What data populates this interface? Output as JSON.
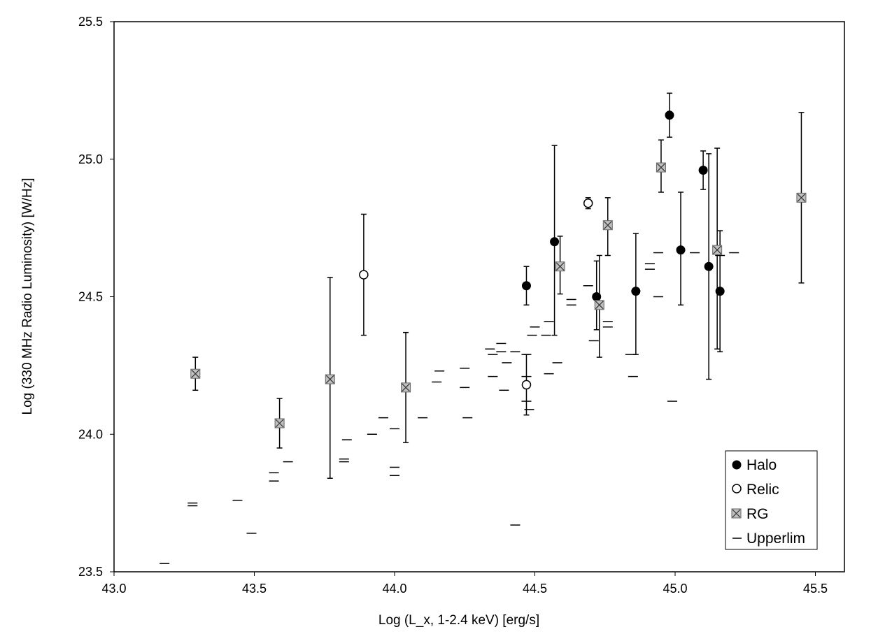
{
  "chart_data": {
    "type": "scatter",
    "xlabel": "Log (L_x, 1-2.4 keV) [erg/s]",
    "ylabel": "Log (330 MHz Radio Luminosity) [W/Hz]",
    "xlim": [
      43.0,
      45.6
    ],
    "ylim": [
      23.5,
      25.5
    ],
    "xticks": [
      43.0,
      43.5,
      44.0,
      44.5,
      45.0,
      45.5
    ],
    "yticks": [
      23.5,
      24.0,
      24.5,
      25.0,
      25.5
    ],
    "xtick_labels": [
      "43.0",
      "43.5",
      "44.0",
      "44.5",
      "45.0",
      "45.5"
    ],
    "ytick_labels": [
      "23.5",
      "24.0",
      "24.5",
      "25.0",
      "25.5"
    ],
    "grid": false,
    "legend_position": "bottom-right",
    "legend": [
      "Halo",
      "Relic",
      "RG",
      "Upperlim"
    ],
    "colors": {
      "halo": "#000000",
      "relic": "#ffffff",
      "rg": "#c0c0c0",
      "frame": "#000000"
    },
    "series": [
      {
        "name": "Halo",
        "marker": "filled-circle",
        "points": [
          {
            "x": 44.47,
            "y": 24.54,
            "ylo": 24.47,
            "yhi": 24.61
          },
          {
            "x": 44.57,
            "y": 24.7,
            "ylo": 24.36,
            "yhi": 25.05
          },
          {
            "x": 44.72,
            "y": 24.5,
            "ylo": 24.38,
            "yhi": 24.63
          },
          {
            "x": 44.86,
            "y": 24.52,
            "ylo": 24.29,
            "yhi": 24.73
          },
          {
            "x": 44.98,
            "y": 25.16,
            "ylo": 25.08,
            "yhi": 25.24
          },
          {
            "x": 45.02,
            "y": 24.67,
            "ylo": 24.47,
            "yhi": 24.88
          },
          {
            "x": 45.1,
            "y": 24.96,
            "ylo": 24.89,
            "yhi": 25.03
          },
          {
            "x": 45.12,
            "y": 24.61,
            "ylo": 24.2,
            "yhi": 25.02
          },
          {
            "x": 45.16,
            "y": 24.52,
            "ylo": 24.3,
            "yhi": 24.74
          }
        ]
      },
      {
        "name": "Relic",
        "marker": "open-circle",
        "points": [
          {
            "x": 43.89,
            "y": 24.58,
            "ylo": 24.36,
            "yhi": 24.8
          },
          {
            "x": 44.47,
            "y": 24.18,
            "ylo": 24.07,
            "yhi": 24.29
          },
          {
            "x": 44.69,
            "y": 24.84,
            "ylo": 24.82,
            "yhi": 24.86
          }
        ]
      },
      {
        "name": "RG",
        "marker": "x-square",
        "points": [
          {
            "x": 43.29,
            "y": 24.22,
            "ylo": 24.16,
            "yhi": 24.28
          },
          {
            "x": 43.59,
            "y": 24.04,
            "ylo": 23.95,
            "yhi": 24.13
          },
          {
            "x": 43.77,
            "y": 24.2,
            "ylo": 23.84,
            "yhi": 24.57
          },
          {
            "x": 44.04,
            "y": 24.17,
            "ylo": 23.97,
            "yhi": 24.37
          },
          {
            "x": 44.59,
            "y": 24.61,
            "ylo": 24.51,
            "yhi": 24.72
          },
          {
            "x": 44.73,
            "y": 24.47,
            "ylo": 24.28,
            "yhi": 24.65
          },
          {
            "x": 44.76,
            "y": 24.76,
            "ylo": 24.65,
            "yhi": 24.86
          },
          {
            "x": 44.95,
            "y": 24.97,
            "ylo": 24.88,
            "yhi": 25.07
          },
          {
            "x": 45.15,
            "y": 24.67,
            "ylo": 24.31,
            "yhi": 25.04
          },
          {
            "x": 45.45,
            "y": 24.86,
            "ylo": 24.55,
            "yhi": 25.17
          }
        ]
      },
      {
        "name": "Upperlim",
        "marker": "dash",
        "points": [
          {
            "x": 43.18,
            "y": 23.53
          },
          {
            "x": 43.28,
            "y": 23.74
          },
          {
            "x": 43.28,
            "y": 23.75
          },
          {
            "x": 43.44,
            "y": 23.76
          },
          {
            "x": 43.49,
            "y": 23.64
          },
          {
            "x": 43.57,
            "y": 23.83
          },
          {
            "x": 43.57,
            "y": 23.86
          },
          {
            "x": 43.62,
            "y": 23.9
          },
          {
            "x": 43.82,
            "y": 23.9
          },
          {
            "x": 43.82,
            "y": 23.91
          },
          {
            "x": 43.83,
            "y": 23.98
          },
          {
            "x": 43.92,
            "y": 24.0
          },
          {
            "x": 43.96,
            "y": 24.06
          },
          {
            "x": 44.0,
            "y": 24.02
          },
          {
            "x": 44.0,
            "y": 23.88
          },
          {
            "x": 44.0,
            "y": 23.85
          },
          {
            "x": 44.1,
            "y": 24.06
          },
          {
            "x": 44.15,
            "y": 24.19
          },
          {
            "x": 44.16,
            "y": 24.23
          },
          {
            "x": 44.25,
            "y": 24.24
          },
          {
            "x": 44.25,
            "y": 24.17
          },
          {
            "x": 44.26,
            "y": 24.06
          },
          {
            "x": 44.34,
            "y": 24.31
          },
          {
            "x": 44.35,
            "y": 24.29
          },
          {
            "x": 44.35,
            "y": 24.21
          },
          {
            "x": 44.38,
            "y": 24.3
          },
          {
            "x": 44.38,
            "y": 24.33
          },
          {
            "x": 44.39,
            "y": 24.16
          },
          {
            "x": 44.4,
            "y": 24.26
          },
          {
            "x": 44.43,
            "y": 24.3
          },
          {
            "x": 44.43,
            "y": 23.67
          },
          {
            "x": 44.47,
            "y": 24.29
          },
          {
            "x": 44.47,
            "y": 24.21
          },
          {
            "x": 44.47,
            "y": 24.12
          },
          {
            "x": 44.48,
            "y": 24.09
          },
          {
            "x": 44.49,
            "y": 24.36
          },
          {
            "x": 44.5,
            "y": 24.39
          },
          {
            "x": 44.54,
            "y": 24.36
          },
          {
            "x": 44.55,
            "y": 24.41
          },
          {
            "x": 44.55,
            "y": 24.22
          },
          {
            "x": 44.58,
            "y": 24.26
          },
          {
            "x": 44.63,
            "y": 24.49
          },
          {
            "x": 44.63,
            "y": 24.47
          },
          {
            "x": 44.69,
            "y": 24.54
          },
          {
            "x": 44.71,
            "y": 24.34
          },
          {
            "x": 44.76,
            "y": 24.41
          },
          {
            "x": 44.76,
            "y": 24.39
          },
          {
            "x": 44.84,
            "y": 24.29
          },
          {
            "x": 44.85,
            "y": 24.21
          },
          {
            "x": 44.91,
            "y": 24.62
          },
          {
            "x": 44.91,
            "y": 24.6
          },
          {
            "x": 44.94,
            "y": 24.66
          },
          {
            "x": 44.94,
            "y": 24.5
          },
          {
            "x": 44.99,
            "y": 24.12
          },
          {
            "x": 45.07,
            "y": 24.66
          },
          {
            "x": 45.16,
            "y": 24.65
          },
          {
            "x": 45.21,
            "y": 24.66
          }
        ]
      }
    ]
  }
}
